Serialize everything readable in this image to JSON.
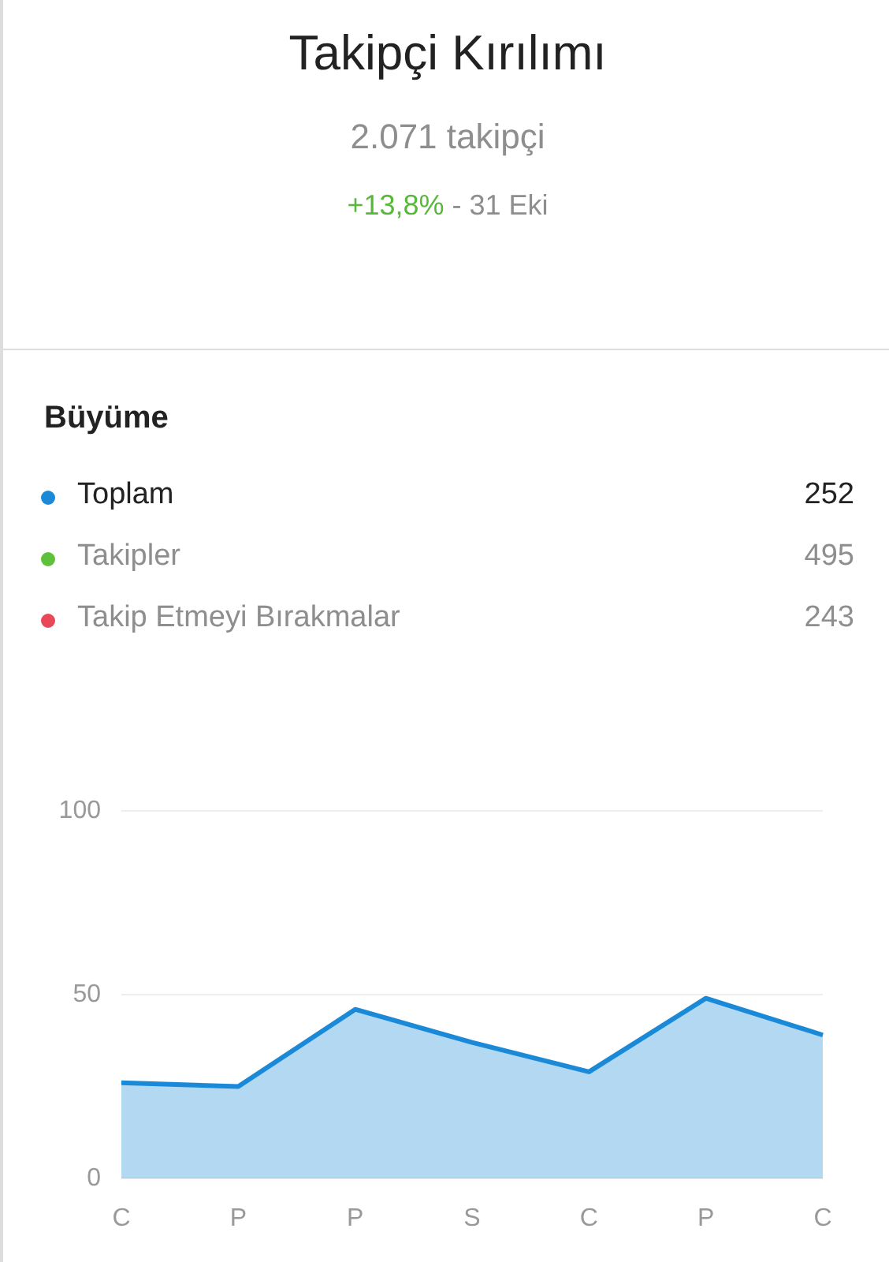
{
  "chart_data": {
    "type": "area",
    "title": "Takipçi Kırılımı",
    "subtitle": "2.071 takipçi",
    "annotations": [
      "+13,8%",
      "- 31 Eki",
      "Büyüme",
      "252",
      "495",
      "243"
    ],
    "categories": [
      "C",
      "P",
      "P",
      "S",
      "C",
      "P",
      "C"
    ],
    "series": [
      {
        "name": "Toplam",
        "color": "#1a8ad8",
        "values": [
          26,
          25,
          46,
          37,
          29,
          49,
          39
        ]
      },
      {
        "name": "Takipler",
        "color": "#5ec13a",
        "values": [
          null,
          null,
          null,
          null,
          null,
          null,
          null
        ]
      },
      {
        "name": "Takip Etmeyi Bırakmalar",
        "color": "#e8485a",
        "values": [
          null,
          null,
          null,
          null,
          null,
          null,
          null
        ]
      }
    ],
    "ylim": [
      0,
      100
    ],
    "yticks": [
      0,
      50,
      100
    ],
    "grid": "y",
    "legend": "top",
    "marker": "none"
  }
}
